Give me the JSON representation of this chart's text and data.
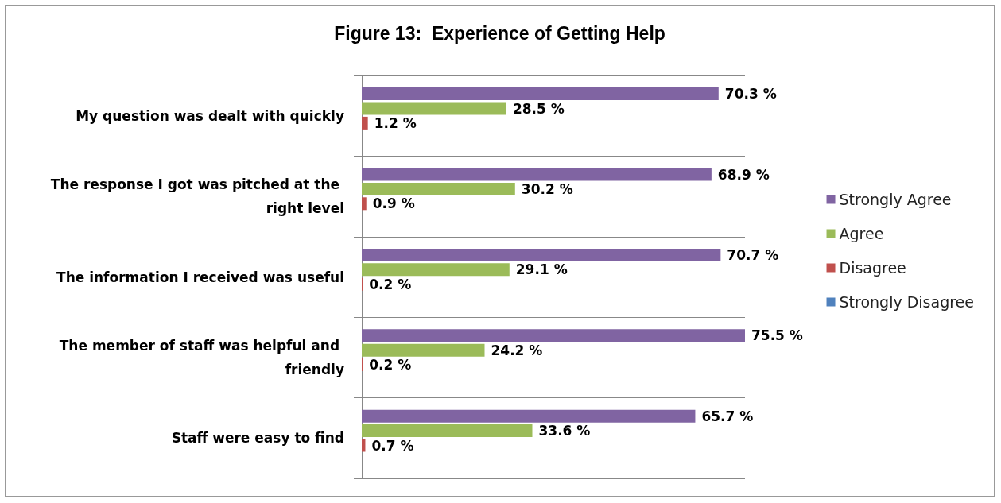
{
  "chart_data": {
    "type": "bar",
    "orientation": "horizontal",
    "title": "Figure 13:  Experience of Getting Help",
    "categories": [
      "My question was dealt with quickly",
      "The response I got was pitched at the right level",
      "The information I received was useful",
      "The member of staff was helpful and friendly",
      "Staff were easy to find"
    ],
    "series": [
      {
        "name": "Strongly Agree",
        "color": "#8064a2",
        "values": [
          70.3,
          68.9,
          70.7,
          75.5,
          65.7
        ],
        "value_labels": [
          "70.3 %",
          "68.9 %",
          "70.7 %",
          "75.5 %",
          "65.7 %"
        ]
      },
      {
        "name": "Agree",
        "color": "#9bbb59",
        "values": [
          28.5,
          30.2,
          29.1,
          24.2,
          33.6
        ],
        "value_labels": [
          "28.5 %",
          "30.2 %",
          "29.1 %",
          "24.2 %",
          "33.6 %"
        ]
      },
      {
        "name": "Disagree",
        "color": "#c0504d",
        "values": [
          1.2,
          0.9,
          0.2,
          0.2,
          0.7
        ],
        "value_labels": [
          "1.2 %",
          "0.9 %",
          "0.2 %",
          "0.2 %",
          "0.7 %"
        ]
      },
      {
        "name": "Strongly Disagree",
        "color": "#4f81bd",
        "values": [
          0,
          0,
          0,
          0,
          0
        ],
        "value_labels": [
          null,
          null,
          null,
          null,
          null
        ]
      }
    ],
    "legend": "right",
    "grid": "y"
  }
}
